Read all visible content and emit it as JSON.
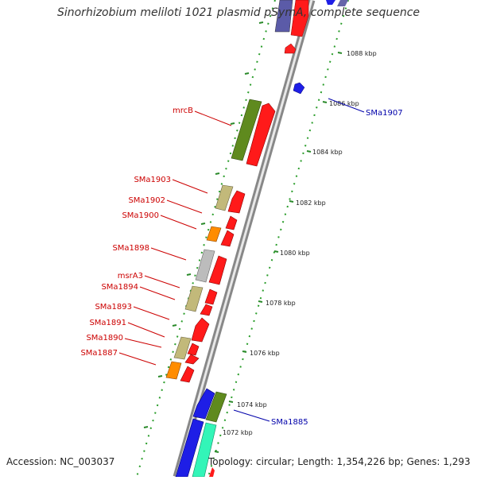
{
  "title": "Sinorhizobium meliloti 1021 plasmid pSymA, complete sequence",
  "footer": {
    "accession": "Accession: NC_003037",
    "topology": "Topology: circular; Length: 1,354,226 bp; Genes: 1,293"
  },
  "colors": {
    "forward_gene": "#ff0000",
    "reverse_gene": "#0000ee",
    "label_forward": "#cc0000",
    "label_reverse": "#0000aa",
    "backbone": "#999999",
    "tick": "#228b22",
    "olive": "#6b8e23",
    "khaki": "#c8c08a",
    "orange": "#ff8c00",
    "silver": "#bbbbbb",
    "aqua": "#33ffbb",
    "slate": "#6666aa"
  },
  "scale_labels": [
    "1088 kbp",
    "1086 kbp",
    "1084 kbp",
    "1082 kbp",
    "1080 kbp",
    "1078 kbp",
    "1076 kbp",
    "1074 kbp",
    "1072 kbp"
  ],
  "gene_labels_left": [
    "mrcB",
    "SMa1903",
    "SMa1902",
    "SMa1900",
    "SMa1898",
    "msrA3",
    "SMa1894",
    "SMa1893",
    "SMa1891",
    "SMa1890",
    "SMa1887"
  ],
  "gene_labels_right": [
    "SMa1907",
    "SMa1885"
  ]
}
